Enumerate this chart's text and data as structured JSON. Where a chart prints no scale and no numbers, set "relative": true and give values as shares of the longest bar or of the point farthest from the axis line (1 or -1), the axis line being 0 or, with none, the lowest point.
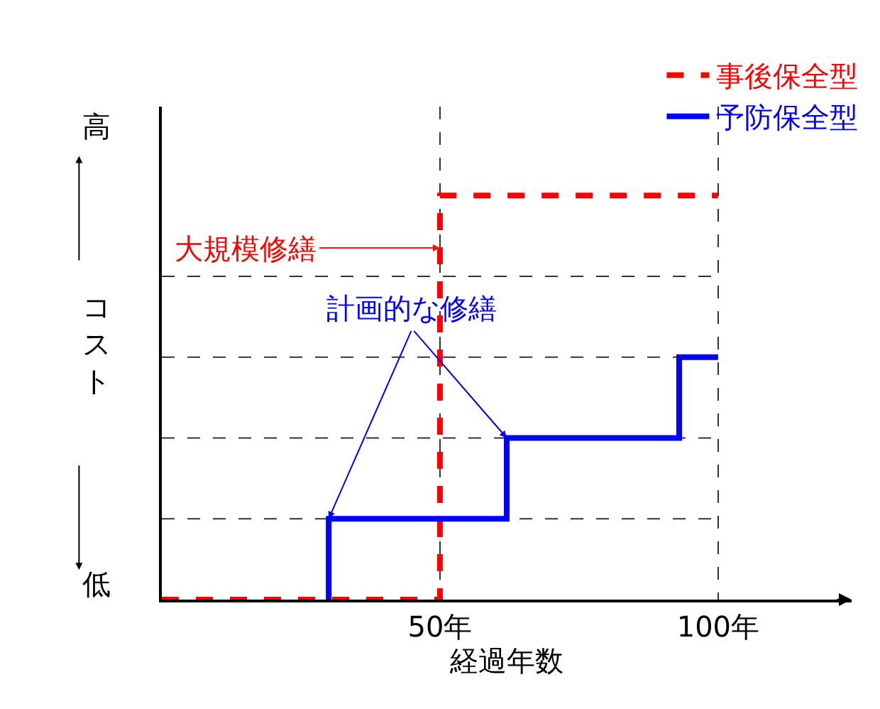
{
  "chart_data": {
    "type": "line",
    "relative": true,
    "xlabel": "経過年数",
    "ylabel": "コスト",
    "xlim": [
      0,
      124
    ],
    "xticks": [
      {
        "value": 50,
        "label": "50年"
      },
      {
        "value": 100,
        "label": "100年"
      }
    ],
    "grid": "x",
    "legend": "top right",
    "tick_labels": "x",
    "series": [
      {
        "name": "事後保全型",
        "color": "#ff0000",
        "line_style": "dashed",
        "x": [
          0,
          50,
          50,
          100
        ],
        "values": [
          0,
          0,
          1,
          1
        ]
      },
      {
        "name": "予防保全型",
        "color": "#0000ff",
        "line_style": "solid",
        "x": [
          30,
          30,
          62,
          62,
          93,
          93,
          100
        ],
        "values": [
          0,
          0.2,
          0.2,
          0.4,
          0.4,
          0.6,
          0.6
        ]
      }
    ],
    "ref_lines": [
      {
        "axis": "y",
        "value": 0.2,
        "label": null
      },
      {
        "axis": "y",
        "value": 0.4,
        "label": null
      },
      {
        "axis": "y",
        "value": 0.6,
        "label": null
      },
      {
        "axis": "y",
        "value": 0.8,
        "label": null
      }
    ],
    "annotations": [
      "大規模修繕",
      "計画的な修繕",
      "高",
      "低"
    ]
  }
}
